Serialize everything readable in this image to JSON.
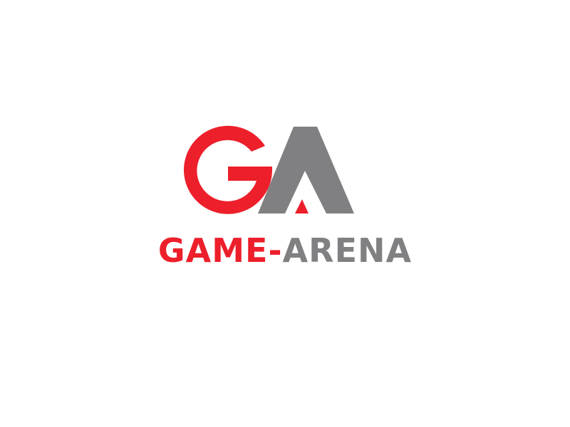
{
  "logo": {
    "monogram_text": "GA",
    "wordmark_part_1": "GAME-",
    "wordmark_part_2": "ARENA"
  },
  "colors": {
    "background": "#ffffff",
    "red": "#ec1f2b",
    "gray": "#808082"
  }
}
